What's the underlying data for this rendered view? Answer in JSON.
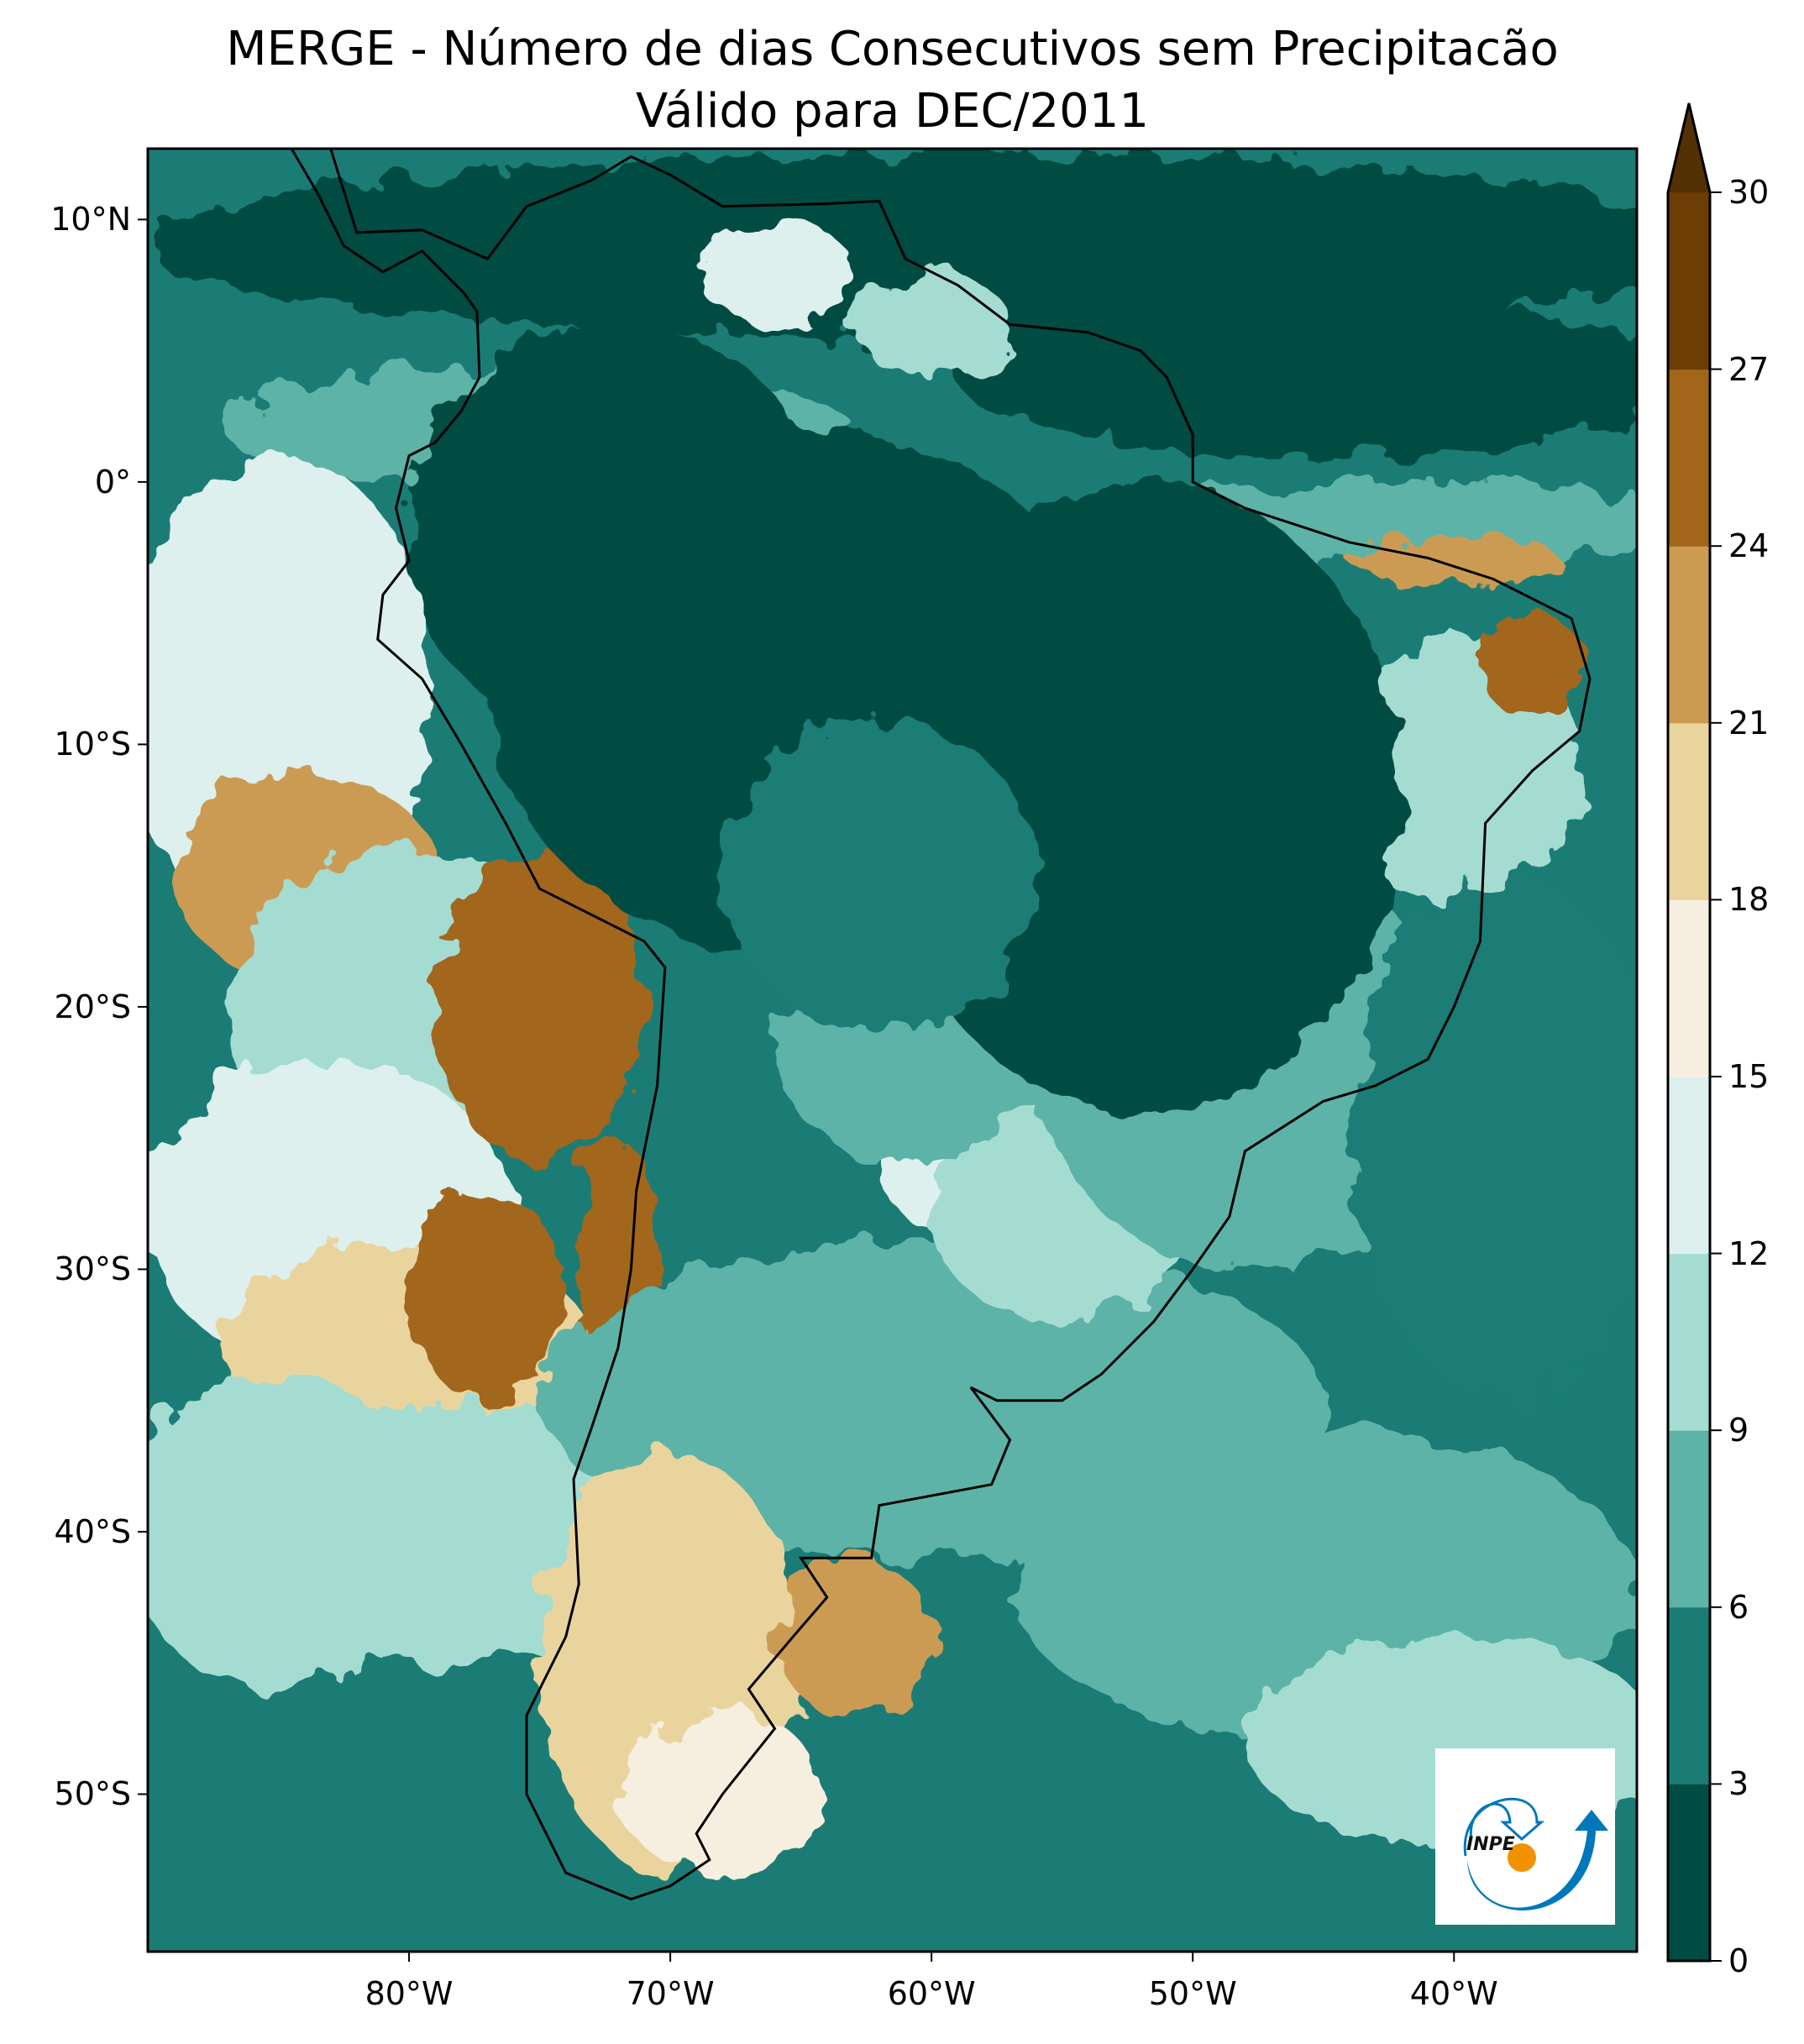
{
  "chart_data": {
    "type": "heatmap",
    "title": "MERGE - Número de dias Consecutivos sem Precipitacão",
    "subtitle": "Válido para DEC/2011",
    "xlabel": "",
    "ylabel": "",
    "xlim": [
      -90,
      -33
    ],
    "ylim": [
      -56,
      12.7
    ],
    "x_ticks": [
      {
        "value": -80,
        "label": "80°W"
      },
      {
        "value": -70,
        "label": "70°W"
      },
      {
        "value": -60,
        "label": "60°W"
      },
      {
        "value": -50,
        "label": "50°W"
      },
      {
        "value": -40,
        "label": "40°W"
      }
    ],
    "y_ticks": [
      {
        "value": 10,
        "label": "10°N"
      },
      {
        "value": 0,
        "label": "0°"
      },
      {
        "value": -10,
        "label": "10°S"
      },
      {
        "value": -20,
        "label": "20°S"
      },
      {
        "value": -30,
        "label": "30°S"
      },
      {
        "value": -40,
        "label": "40°S"
      },
      {
        "value": -50,
        "label": "50°S"
      }
    ],
    "colorbar": {
      "levels": [
        0,
        3,
        6,
        9,
        12,
        15,
        18,
        21,
        24,
        27,
        30
      ],
      "labels": [
        "0",
        "3",
        "6",
        "9",
        "12",
        "15",
        "18",
        "21",
        "24",
        "27",
        "30"
      ],
      "colors": [
        "#004c42",
        "#1b7c76",
        "#5db3a7",
        "#a5dcd2",
        "#ddf0ee",
        "#f6efdf",
        "#ead49e",
        "#cc9b52",
        "#a2661b",
        "#6c3d05"
      ],
      "extend_color": "#543005",
      "extend": "max"
    },
    "logo": {
      "text": "INPE"
    }
  }
}
